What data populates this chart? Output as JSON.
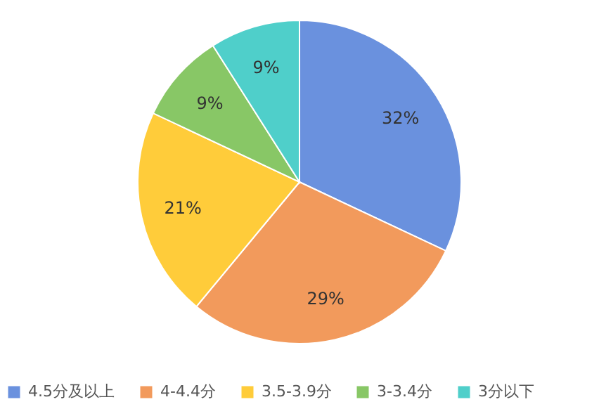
{
  "chart_data": {
    "type": "pie",
    "categories": [
      "4.5分及以上",
      "4-4.4分",
      "3.5-3.9分",
      "3-3.4分",
      "3分以下"
    ],
    "values": [
      32,
      29,
      21,
      9,
      9
    ],
    "value_labels": [
      "32%",
      "29%",
      "21%",
      "9%",
      "9%"
    ],
    "colors": [
      "#6a91de",
      "#f29a5c",
      "#ffcc3a",
      "#88c766",
      "#4fcfca"
    ],
    "legend": "bottom"
  }
}
